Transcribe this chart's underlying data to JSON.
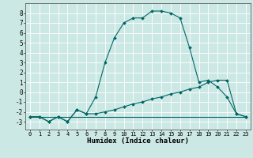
{
  "title": "",
  "xlabel": "Humidex (Indice chaleur)",
  "bg_color": "#cce8e5",
  "grid_color": "#ffffff",
  "line_color": "#006666",
  "xlim": [
    -0.5,
    23.5
  ],
  "ylim": [
    -3.8,
    9.0
  ],
  "xticks": [
    0,
    1,
    2,
    3,
    4,
    5,
    6,
    7,
    8,
    9,
    10,
    11,
    12,
    13,
    14,
    15,
    16,
    17,
    18,
    19,
    20,
    21,
    22,
    23
  ],
  "yticks": [
    -3,
    -2,
    -1,
    0,
    1,
    2,
    3,
    4,
    5,
    6,
    7,
    8
  ],
  "curve1_x": [
    0,
    1,
    2,
    3,
    4,
    5,
    6,
    7,
    8,
    9,
    10,
    11,
    12,
    13,
    14,
    15,
    16,
    17,
    18,
    19,
    20,
    21,
    22,
    23
  ],
  "curve1_y": [
    -2.5,
    -2.5,
    -3.0,
    -2.5,
    -3.0,
    -1.8,
    -2.2,
    -0.5,
    3.0,
    5.5,
    7.0,
    7.5,
    7.5,
    8.2,
    8.2,
    8.0,
    7.5,
    4.5,
    1.0,
    1.2,
    0.5,
    -0.5,
    -2.2,
    -2.5
  ],
  "curve2_x": [
    0,
    1,
    2,
    3,
    4,
    5,
    6,
    7,
    8,
    9,
    10,
    11,
    12,
    13,
    14,
    15,
    16,
    17,
    18,
    19,
    20,
    21,
    22,
    23
  ],
  "curve2_y": [
    -2.5,
    -2.5,
    -3.0,
    -2.5,
    -3.0,
    -1.8,
    -2.2,
    -2.2,
    -2.0,
    -1.8,
    -1.5,
    -1.2,
    -1.0,
    -0.7,
    -0.5,
    -0.2,
    0.0,
    0.3,
    0.5,
    1.0,
    1.2,
    1.2,
    -2.2,
    -2.5
  ],
  "curve3_x": [
    0,
    23
  ],
  "curve3_y": [
    -2.5,
    -2.5
  ],
  "marker_size": 2.0,
  "line_width": 0.8,
  "tick_fontsize": 5.0,
  "xlabel_fontsize": 6.5
}
